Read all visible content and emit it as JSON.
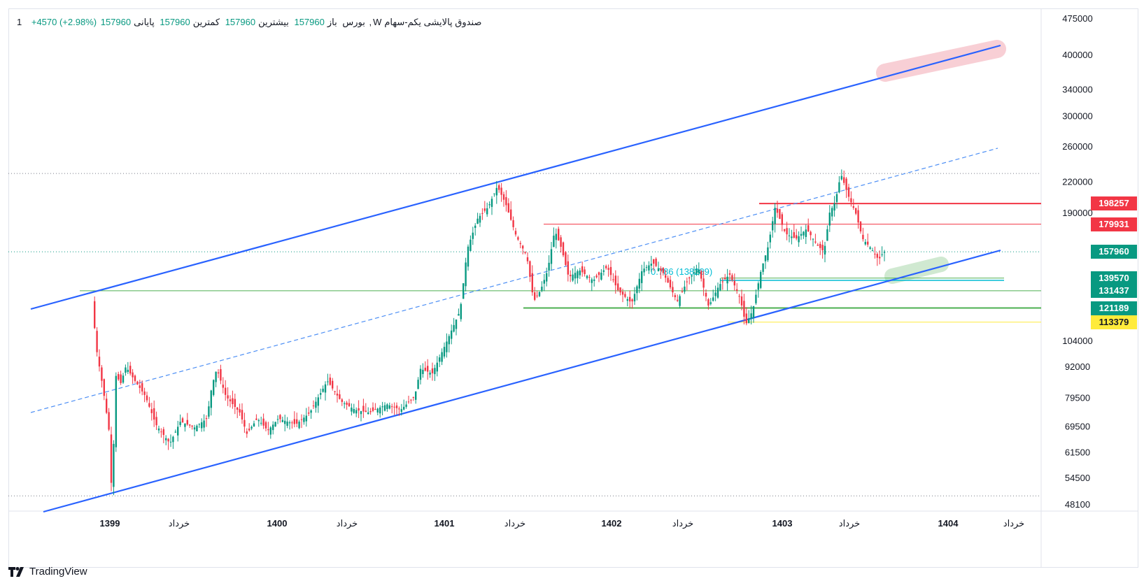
{
  "header": {
    "symbol": "صندوق پالایشی یکم-سهام",
    "interval": "W",
    "timeframe_tail": "1",
    "exchange": "بورس",
    "open_label": "باز",
    "open_value": "157960",
    "high_label": "بیشترین",
    "high_value": "157960",
    "low_label": "کمترین",
    "low_value": "157960",
    "close_label": "پایانی",
    "close_value": "157960",
    "change": "+4570 (+2.98%)"
  },
  "branding": {
    "name": "TradingView",
    "icon": "tradingview-logo-icon"
  },
  "colors": {
    "up": "#089981",
    "down": "#f23645",
    "channel": "#2962ff",
    "red_level": "#f23645",
    "green_level": "#4caf50",
    "yellow_level": "#ffeb3b",
    "teal_level": "#00bcd4",
    "grid_dotted": "#787b86"
  },
  "chart_data": {
    "type": "candlestick",
    "y_scale": "log",
    "ylim": [
      46000,
      480000
    ],
    "y_ticks": [
      475000,
      400000,
      340000,
      300000,
      260000,
      220000,
      190000,
      104000,
      92000,
      79500,
      69500,
      61500,
      54500,
      48100
    ],
    "x_axis_labels": [
      "1399",
      "خرداد",
      "1400",
      "خرداد",
      "1401",
      "خرداد",
      "1402",
      "خرداد",
      "1403",
      "خرداد",
      "1404",
      "خرداد"
    ],
    "price_levels": [
      {
        "value": 198257,
        "label": "198257",
        "kind": "red"
      },
      {
        "value": 179931,
        "label": "179931",
        "kind": "red"
      },
      {
        "value": 157960,
        "label": "157960",
        "kind": "current"
      },
      {
        "value": 139570,
        "label": "139570",
        "kind": "green"
      },
      {
        "value": 131437,
        "label": "131437",
        "kind": "green"
      },
      {
        "value": 121189,
        "label": "121189",
        "kind": "green"
      },
      {
        "value": 113379,
        "label": "113379",
        "kind": "yellow"
      }
    ],
    "fib_label": "0.786 (138289)",
    "key_points": [
      {
        "x": "1399",
        "y": 130000,
        "note": "early peak"
      },
      {
        "x": "1399",
        "y": 50000,
        "note": "low"
      },
      {
        "x": "1401 خرداد",
        "y": 215000,
        "note": "peak"
      },
      {
        "x": "1403",
        "y": 112000,
        "note": "low"
      },
      {
        "x": "1403 خرداد",
        "y": 228000,
        "note": "peak"
      },
      {
        "x": "last",
        "y": 157960,
        "note": "close"
      }
    ],
    "channel": {
      "upper_line": [
        {
          "x": "start",
          "y": 118000
        },
        {
          "x": "end",
          "y": 425000
        }
      ],
      "lower_line": [
        {
          "x": "start",
          "y": 46000
        },
        {
          "x": "end",
          "y": 160000
        }
      ],
      "median_dashed": [
        {
          "x": "start",
          "y": 76000
        },
        {
          "x": "end",
          "y": 257000
        }
      ]
    }
  }
}
